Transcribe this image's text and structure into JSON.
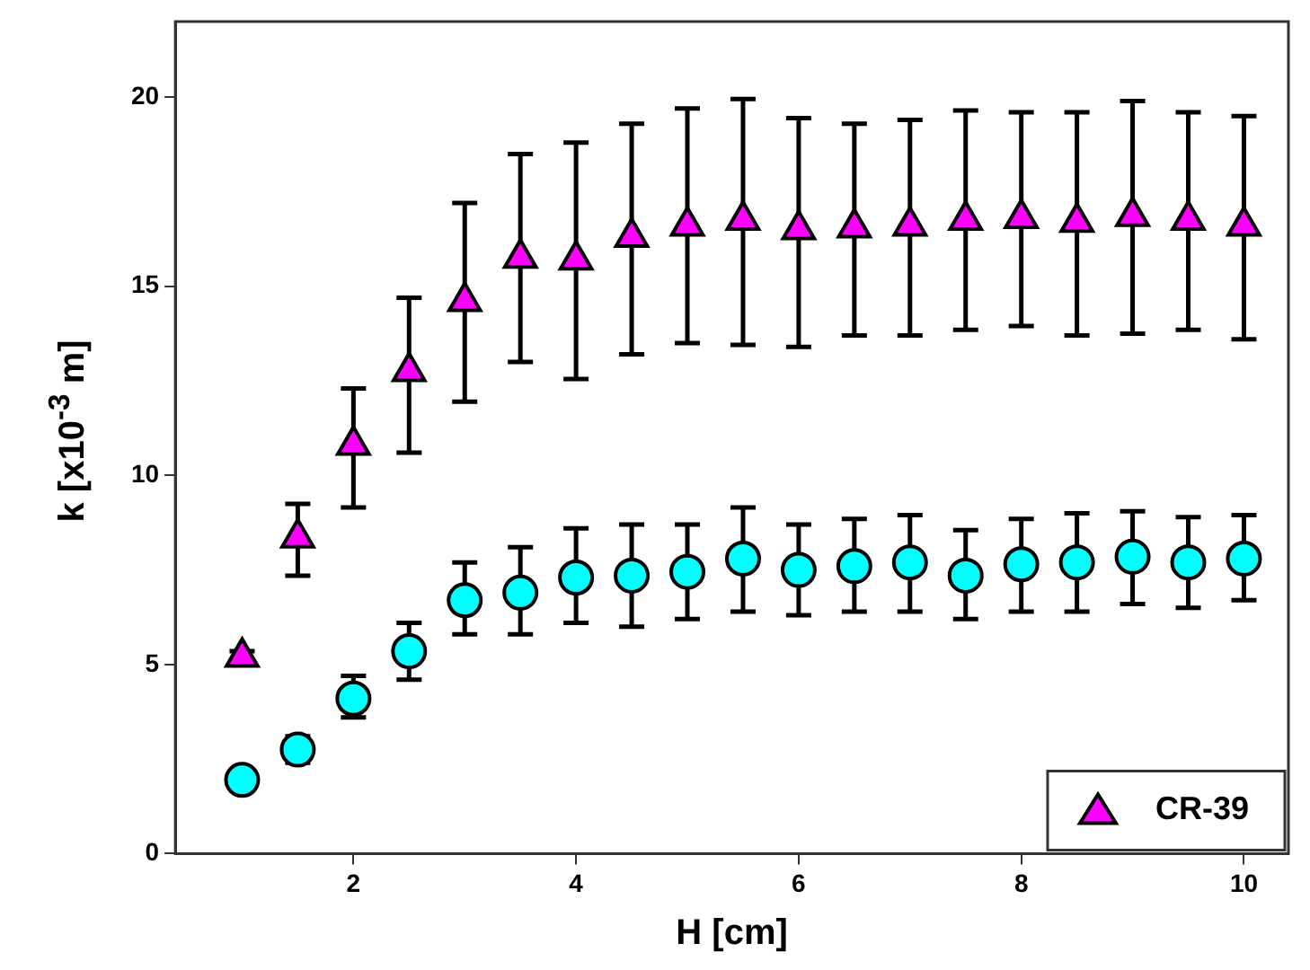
{
  "chart_data": {
    "type": "scatter",
    "xlabel": "H [cm]",
    "ylabel": "k [x10$^{-3}$ m]",
    "x": [
      1,
      1.5,
      2,
      2.5,
      3,
      3.5,
      4,
      4.5,
      5,
      5.5,
      6,
      6.5,
      7,
      7.5,
      8,
      8.5,
      9,
      9.5,
      10
    ],
    "series": [
      {
        "color": "#00ffff",
        "marker": "circle",
        "values": [
          1.95,
          2.75,
          4.1,
          5.35,
          6.7,
          6.9,
          7.3,
          7.35,
          7.45,
          7.8,
          7.5,
          7.6,
          7.7,
          7.35,
          7.65,
          7.7,
          7.85,
          7.7,
          7.8
        ],
        "errors": [
          null,
          [
            2.4,
            3.1
          ],
          [
            3.6,
            4.7
          ],
          [
            4.6,
            6.1
          ],
          [
            5.8,
            7.7
          ],
          [
            5.8,
            8.1
          ],
          [
            6.1,
            8.6
          ],
          [
            6.0,
            8.7
          ],
          [
            6.2,
            8.7
          ],
          [
            6.4,
            9.15
          ],
          [
            6.3,
            8.7
          ],
          [
            6.4,
            8.85
          ],
          [
            6.4,
            8.95
          ],
          [
            6.2,
            8.55
          ],
          [
            6.4,
            8.85
          ],
          [
            6.4,
            9.0
          ],
          [
            6.6,
            9.05
          ],
          [
            6.5,
            8.9
          ],
          [
            6.7,
            8.95
          ]
        ]
      },
      {
        "name": "CR-39",
        "color": "#ff00ff",
        "marker": "triangle",
        "values": [
          5.2,
          8.35,
          10.8,
          12.75,
          14.6,
          15.75,
          15.7,
          16.3,
          16.6,
          16.75,
          16.5,
          16.55,
          16.6,
          16.75,
          16.8,
          16.7,
          16.85,
          16.75,
          16.6
        ],
        "errors": [
          [
            5.05,
            5.35
          ],
          [
            7.35,
            9.25
          ],
          [
            9.15,
            12.3
          ],
          [
            10.6,
            14.7
          ],
          [
            11.95,
            17.2
          ],
          [
            13.0,
            18.5
          ],
          [
            12.55,
            18.8
          ],
          [
            13.2,
            19.3
          ],
          [
            13.5,
            19.7
          ],
          [
            13.45,
            19.95
          ],
          [
            13.4,
            19.45
          ],
          [
            13.7,
            19.3
          ],
          [
            13.7,
            19.4
          ],
          [
            13.85,
            19.65
          ],
          [
            13.95,
            19.6
          ],
          [
            13.7,
            19.6
          ],
          [
            13.75,
            19.9
          ],
          [
            13.85,
            19.6
          ],
          [
            13.6,
            19.5
          ]
        ]
      }
    ],
    "xlim": [
      0.4,
      10.4
    ],
    "xticks": [
      2,
      4,
      6,
      8,
      10
    ],
    "ylim": [
      0,
      22
    ],
    "yticks": [
      0,
      5,
      10,
      15,
      20
    ],
    "grid": false,
    "legend": "bottom right"
  }
}
